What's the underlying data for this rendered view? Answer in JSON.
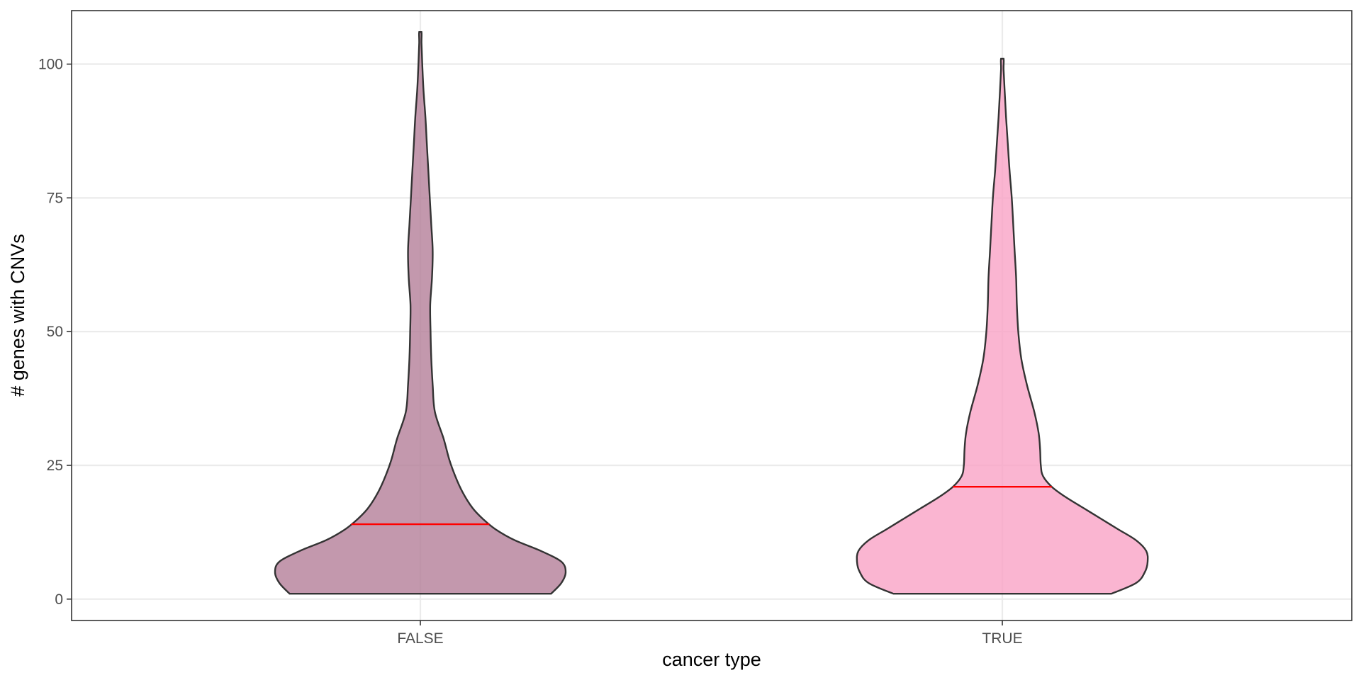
{
  "chart_data": {
    "type": "violin",
    "title": "",
    "xlabel": "cancer type",
    "ylabel": "# genes with CNVs",
    "ylim": [
      -4,
      110
    ],
    "y_ticks": [
      0,
      25,
      50,
      75,
      100
    ],
    "y_tick_labels": [
      "0",
      "25",
      "50",
      "75",
      "100"
    ],
    "categories": [
      "FALSE",
      "TRUE"
    ],
    "grid": true,
    "legend": "none",
    "median_color": "#ff0000",
    "outline_color": "#333333",
    "series": [
      {
        "category": "FALSE",
        "fill": "#b47e99",
        "min": 1,
        "max": 106,
        "median": 14,
        "density": [
          [
            1,
            0.9
          ],
          [
            3,
            0.97
          ],
          [
            5,
            1.0
          ],
          [
            7,
            0.97
          ],
          [
            9,
            0.83
          ],
          [
            11,
            0.65
          ],
          [
            13,
            0.52
          ],
          [
            15,
            0.43
          ],
          [
            17,
            0.36
          ],
          [
            20,
            0.29
          ],
          [
            23,
            0.24
          ],
          [
            26,
            0.2
          ],
          [
            30,
            0.16
          ],
          [
            35,
            0.1
          ],
          [
            40,
            0.085
          ],
          [
            45,
            0.075
          ],
          [
            50,
            0.07
          ],
          [
            55,
            0.068
          ],
          [
            60,
            0.08
          ],
          [
            65,
            0.085
          ],
          [
            70,
            0.075
          ],
          [
            75,
            0.065
          ],
          [
            80,
            0.055
          ],
          [
            85,
            0.045
          ],
          [
            90,
            0.035
          ],
          [
            95,
            0.022
          ],
          [
            100,
            0.013
          ],
          [
            104,
            0.008
          ],
          [
            106,
            0.008
          ]
        ]
      },
      {
        "category": "TRUE",
        "fill": "#f9a2c6",
        "min": 1,
        "max": 101,
        "median": 21,
        "density": [
          [
            1,
            0.75
          ],
          [
            3,
            0.92
          ],
          [
            5,
            0.98
          ],
          [
            7,
            1.0
          ],
          [
            9,
            0.99
          ],
          [
            11,
            0.92
          ],
          [
            13,
            0.8
          ],
          [
            15,
            0.68
          ],
          [
            17,
            0.56
          ],
          [
            19,
            0.44
          ],
          [
            21,
            0.34
          ],
          [
            23,
            0.28
          ],
          [
            25,
            0.265
          ],
          [
            28,
            0.26
          ],
          [
            31,
            0.25
          ],
          [
            35,
            0.22
          ],
          [
            40,
            0.17
          ],
          [
            45,
            0.13
          ],
          [
            50,
            0.11
          ],
          [
            55,
            0.1
          ],
          [
            60,
            0.095
          ],
          [
            65,
            0.085
          ],
          [
            70,
            0.075
          ],
          [
            75,
            0.065
          ],
          [
            80,
            0.05
          ],
          [
            85,
            0.038
          ],
          [
            90,
            0.026
          ],
          [
            95,
            0.016
          ],
          [
            99,
            0.009
          ],
          [
            101,
            0.009
          ]
        ]
      }
    ]
  }
}
